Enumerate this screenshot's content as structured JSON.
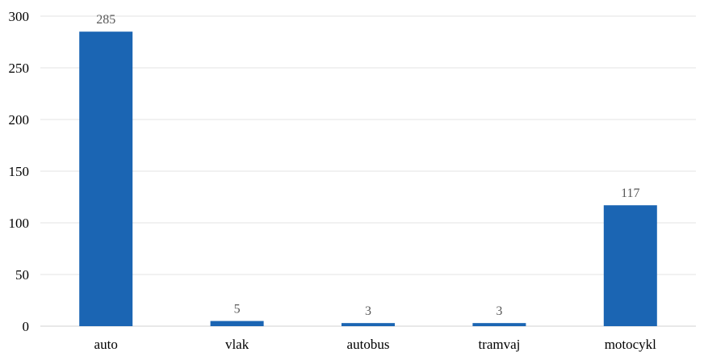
{
  "chart_data": {
    "type": "bar",
    "categories": [
      "auto",
      "vlak",
      "autobus",
      "tramvaj",
      "motocykl"
    ],
    "values": [
      285,
      5,
      3,
      3,
      117
    ],
    "title": "",
    "xlabel": "",
    "ylabel": "",
    "ylim": [
      0,
      300
    ],
    "yticks": [
      0,
      50,
      100,
      150,
      200,
      250,
      300
    ],
    "grid": true,
    "legend": "none",
    "bar_color": "#1b65b3",
    "data_labels": true
  }
}
